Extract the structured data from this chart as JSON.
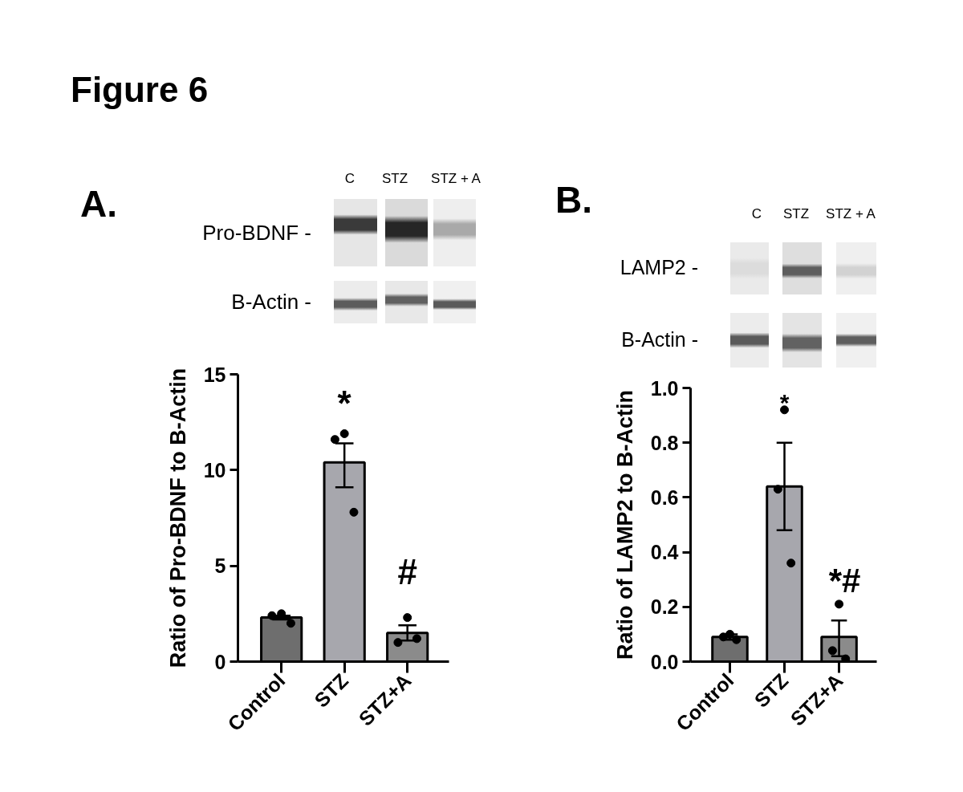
{
  "chart_data": [
    {
      "type": "bar",
      "title": "Figure 6",
      "subtitle": "A.",
      "ylabel": "Ratio of Pro-BDNF to B-Actin",
      "categories": [
        "Control",
        "STZ",
        "STZ+A"
      ],
      "ylim": [
        0,
        15
      ],
      "yticks": [
        0,
        5,
        10,
        15
      ],
      "grid": false,
      "series": [
        {
          "type": "bar",
          "values": [
            2.3,
            10.4,
            1.5
          ],
          "colors": [
            "#6e6e6e",
            "#a7a7ad",
            "#8b8b8b"
          ],
          "errors": [
            0.1,
            [
              9.1,
              11.4
            ],
            [
              1.1,
              1.9
            ]
          ]
        },
        {
          "type": "scatter",
          "x": [
            "Control",
            "Control",
            "Control",
            "STZ",
            "STZ",
            "STZ",
            "STZ+A",
            "STZ+A",
            "STZ+A"
          ],
          "values": [
            2.5,
            2.4,
            2.0,
            11.9,
            11.6,
            7.8,
            2.3,
            1.0,
            1.2
          ],
          "color": "#000000",
          "marker": "circle"
        }
      ],
      "annotations": [
        "C",
        "STZ",
        "STZ + A",
        "Pro-BDNF -",
        "B-Actin -",
        "*",
        "#"
      ]
    },
    {
      "type": "bar",
      "subtitle": "B.",
      "ylabel": "Ratio of LAMP2 to B-Actin",
      "categories": [
        "Control",
        "STZ",
        "STZ+A"
      ],
      "ylim": [
        0,
        1.0
      ],
      "yticks": [
        {
          "value": 0,
          "label": "0.0"
        },
        0.2,
        0.4,
        0.6,
        0.8,
        {
          "value": 1.0,
          "label": "1.0"
        }
      ],
      "grid": false,
      "series": [
        {
          "type": "bar",
          "values": [
            0.09,
            0.64,
            0.09
          ],
          "colors": [
            "#6e6e6e",
            "#a7a7ad",
            "#8b8b8b"
          ],
          "errors": [
            0.01,
            [
              0.48,
              0.8
            ],
            [
              0.02,
              0.15
            ]
          ]
        },
        {
          "type": "scatter",
          "x": [
            "Control",
            "Control",
            "Control",
            "STZ",
            "STZ",
            "STZ",
            "STZ+A",
            "STZ+A",
            "STZ+A"
          ],
          "values": [
            0.1,
            0.09,
            0.08,
            0.92,
            0.63,
            0.36,
            0.21,
            0.04,
            0.01
          ],
          "color": "#000000",
          "marker": "circle"
        }
      ],
      "annotations": [
        "C",
        "STZ",
        "STZ + A",
        "LAMP2 -",
        "B-Actin -",
        "*",
        "*#"
      ]
    }
  ]
}
